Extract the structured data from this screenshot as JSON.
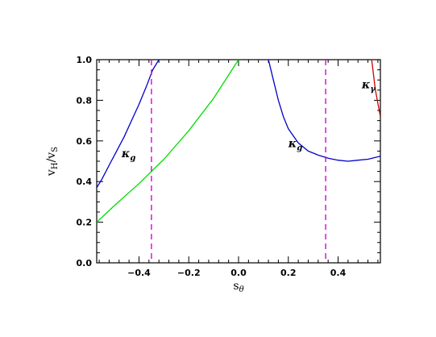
{
  "chart_data": {
    "type": "line",
    "title": "",
    "xlabel": "s_θ",
    "ylabel": "v_H/v_S",
    "xlim": [
      -0.57,
      0.57
    ],
    "ylim": [
      0.0,
      1.0
    ],
    "xticks": [
      -0.4,
      -0.2,
      0.0,
      0.2,
      0.4
    ],
    "xtick_labels": [
      "−0.4",
      "−0.2",
      "0.0",
      "0.2",
      "0.4"
    ],
    "yticks": [
      0.0,
      0.2,
      0.4,
      0.6,
      0.8,
      1.0
    ],
    "ytick_labels": [
      "0.0",
      "0.2",
      "0.4",
      "0.6",
      "0.8",
      "1.0"
    ],
    "grid": false,
    "series": [
      {
        "color": "#0000cc",
        "x": [
          -0.57,
          -0.55,
          -0.52,
          -0.49,
          -0.46,
          -0.43,
          -0.4,
          -0.37,
          -0.345,
          -0.32
        ],
        "y": [
          0.37,
          0.41,
          0.48,
          0.55,
          0.62,
          0.7,
          0.78,
          0.87,
          0.95,
          1.0
        ]
      },
      {
        "color": "#00dd00",
        "x": [
          -0.57,
          -0.5,
          -0.4,
          -0.3,
          -0.2,
          -0.1,
          0.0
        ],
        "y": [
          0.2,
          0.28,
          0.39,
          0.51,
          0.65,
          0.81,
          1.0
        ]
      },
      {
        "color": "#0000cc",
        "x": [
          0.12,
          0.14,
          0.16,
          0.18,
          0.2,
          0.24,
          0.28,
          0.32,
          0.36,
          0.4,
          0.44,
          0.48,
          0.52,
          0.57
        ],
        "y": [
          1.0,
          0.9,
          0.8,
          0.72,
          0.66,
          0.59,
          0.55,
          0.53,
          0.515,
          0.505,
          0.5,
          0.505,
          0.51,
          0.525
        ]
      },
      {
        "color": "#cc0000",
        "x": [
          0.535,
          0.55,
          0.57
        ],
        "y": [
          1.0,
          0.85,
          0.72
        ]
      }
    ],
    "vlines": [
      {
        "x": -0.35,
        "color": "#dd00dd",
        "style": "dashed"
      },
      {
        "x": 0.35,
        "color": "#dd00dd",
        "style": "dashed"
      }
    ],
    "annotations": [
      {
        "text": "κ_g",
        "x": -0.47,
        "y": 0.52
      },
      {
        "text": "κ_g",
        "x": 0.2,
        "y": 0.57
      },
      {
        "text": "κ_γ",
        "x": 0.495,
        "y": 0.86
      }
    ]
  }
}
